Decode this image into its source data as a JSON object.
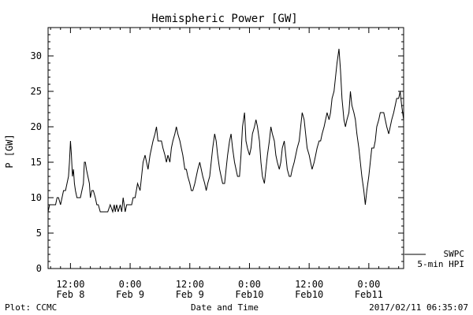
{
  "chart_data": {
    "type": "line",
    "title": "Hemispheric Power [GW]",
    "ylabel": "P [GW]",
    "xlabel": "Date and Time",
    "ylim": [
      0,
      34
    ],
    "xlim_hours": [
      7.5,
      79
    ],
    "y_ticks": [
      0,
      5,
      10,
      15,
      20,
      25,
      30
    ],
    "x_ticks": [
      {
        "hour": 12,
        "time": "12:00",
        "date": "Feb 8"
      },
      {
        "hour": 24,
        "time": "0:00",
        "date": "Feb 9"
      },
      {
        "hour": 36,
        "time": "12:00",
        "date": "Feb 9"
      },
      {
        "hour": 48,
        "time": "0:00",
        "date": "Feb10"
      },
      {
        "hour": 60,
        "time": "12:00",
        "date": "Feb10"
      },
      {
        "hour": 72,
        "time": "0:00",
        "date": "Feb11"
      }
    ],
    "legend": {
      "source": "SWPC",
      "label": "5-min HPI",
      "placement": "bottom-right"
    },
    "series": [
      {
        "x": [
          7.5,
          7.8,
          8.0,
          8.5,
          9.0,
          9.3,
          9.6,
          10.0,
          10.3,
          10.6,
          11.0,
          11.3,
          11.6,
          11.8,
          12.0,
          12.2,
          12.4,
          12.6,
          12.8,
          13.0,
          13.3,
          13.6,
          14.0,
          14.3,
          14.6,
          14.8,
          15.0,
          15.2,
          15.5,
          15.8,
          16.0,
          16.3,
          16.6,
          17.0,
          17.3,
          17.6,
          18.0,
          18.5,
          19.0,
          19.5,
          20.0,
          20.5,
          20.8,
          21.0,
          21.3,
          21.6,
          22.0,
          22.3,
          22.6,
          23.0,
          23.3,
          23.6,
          24.0,
          24.3,
          24.6,
          25.0,
          25.5,
          26.0,
          26.3,
          26.6,
          27.0,
          27.3,
          27.6,
          28.0,
          28.3,
          28.6,
          29.0,
          29.3,
          29.6,
          30.0,
          30.3,
          30.6,
          31.0,
          31.3,
          31.6,
          32.0,
          32.3,
          32.6,
          33.0,
          33.3,
          33.6,
          34.0,
          34.3,
          34.6,
          35.0,
          35.3,
          35.6,
          36.0,
          36.3,
          36.6,
          37.0,
          37.3,
          37.6,
          38.0,
          38.3,
          38.6,
          39.0,
          39.3,
          39.6,
          40.0,
          40.3,
          40.6,
          41.0,
          41.3,
          41.6,
          42.0,
          42.3,
          42.6,
          43.0,
          43.3,
          43.6,
          44.0,
          44.3,
          44.6,
          45.0,
          45.3,
          45.6,
          46.0,
          46.3,
          46.6,
          47.0,
          47.3,
          47.6,
          48.0,
          48.3,
          48.6,
          49.0,
          49.3,
          49.6,
          50.0,
          50.3,
          50.6,
          51.0,
          51.3,
          51.6,
          52.0,
          52.3,
          52.6,
          53.0,
          53.3,
          53.6,
          54.0,
          54.3,
          54.6,
          55.0,
          55.3,
          55.6,
          56.0,
          56.3,
          56.6,
          57.0,
          57.3,
          57.6,
          58.0,
          58.3,
          58.6,
          59.0,
          59.3,
          59.6,
          60.0,
          60.3,
          60.6,
          61.0,
          61.3,
          61.6,
          62.0,
          62.3,
          62.6,
          63.0,
          63.3,
          63.6,
          64.0,
          64.3,
          64.6,
          65.0,
          65.3,
          65.6,
          66.0,
          66.3,
          66.6,
          67.0,
          67.3,
          67.6,
          68.0,
          68.3,
          68.6,
          69.0,
          69.3,
          69.6,
          70.0,
          70.3,
          70.6,
          71.0,
          71.3,
          71.6,
          72.0,
          72.3,
          72.6,
          73.0,
          73.3,
          73.6,
          74.0,
          74.3,
          74.6,
          75.0,
          75.3,
          75.6,
          76.0,
          76.3,
          76.6,
          77.0,
          77.3,
          77.6,
          78.0,
          78.3,
          78.6,
          79.0
        ],
        "y": [
          8,
          9,
          9,
          9,
          9,
          10,
          10,
          9,
          10,
          11,
          11,
          12,
          13,
          15,
          18,
          16,
          13,
          14,
          12,
          11,
          10,
          10,
          10,
          11,
          12,
          15,
          15,
          14,
          13,
          12,
          10,
          11,
          11,
          10,
          9,
          9,
          8,
          8,
          8,
          8,
          9,
          8,
          9,
          8,
          9,
          8,
          9,
          8,
          10,
          8,
          9,
          9,
          9,
          9,
          10,
          10,
          12,
          11,
          13,
          15,
          16,
          15,
          14,
          16,
          17,
          18,
          19,
          20,
          18,
          18,
          18,
          17,
          16,
          15,
          16,
          15,
          17,
          18,
          19,
          20,
          19,
          18,
          17,
          16,
          14,
          14,
          13,
          12,
          11,
          11,
          12,
          13,
          14,
          15,
          14,
          13,
          12,
          11,
          12,
          13,
          15,
          17,
          19,
          18,
          16,
          14,
          13,
          12,
          12,
          14,
          16,
          18,
          19,
          17,
          15,
          14,
          13,
          13,
          16,
          20,
          22,
          18,
          17,
          16,
          17,
          19,
          20,
          21,
          20,
          18,
          15,
          13,
          12,
          14,
          16,
          18,
          20,
          19,
          18,
          16,
          15,
          14,
          15,
          17,
          18,
          16,
          14,
          13,
          13,
          14,
          15,
          16,
          17,
          18,
          20,
          22,
          21,
          19,
          17,
          16,
          15,
          14,
          15,
          16,
          17,
          18,
          18,
          19,
          20,
          21,
          22,
          21,
          22,
          24,
          25,
          27,
          29,
          31,
          28,
          24,
          21,
          20,
          21,
          22,
          25,
          23,
          22,
          21,
          19,
          17,
          15,
          13,
          11,
          9,
          11,
          13,
          15,
          17,
          17,
          18,
          20,
          21,
          22,
          22,
          22,
          21,
          20,
          19,
          20,
          21,
          22,
          23,
          24,
          24,
          25,
          23,
          21
        ]
      }
    ]
  },
  "footer": {
    "left": "Plot: CCMC",
    "right": "2017/02/11 06:35:07"
  }
}
